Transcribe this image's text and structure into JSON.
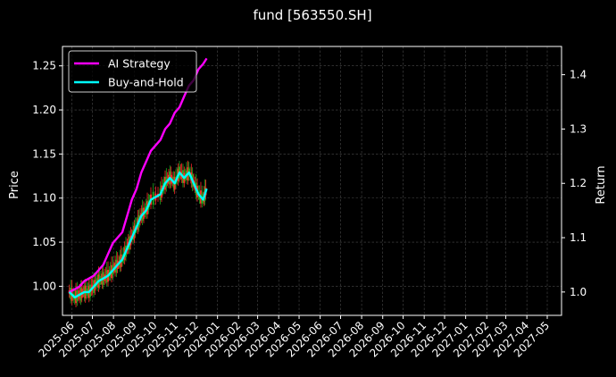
{
  "chart_data": {
    "type": "line",
    "title": "fund [563550.SH]",
    "xlabel": "",
    "ylabel_left": "Price",
    "ylabel_right": "Return",
    "x_ticks": [
      "2025-06",
      "2025-07",
      "2025-08",
      "2025-09",
      "2025-10",
      "2025-11",
      "2025-12",
      "2026-01",
      "2026-02",
      "2026-03",
      "2026-04",
      "2026-05",
      "2026-06",
      "2026-07",
      "2026-08",
      "2026-09",
      "2026-10",
      "2026-11",
      "2026-12",
      "2027-01",
      "2027-02",
      "2027-03",
      "2027-04",
      "2027-05"
    ],
    "y_left_ticks": [
      "1.00",
      "1.05",
      "1.10",
      "1.15",
      "1.20",
      "1.25"
    ],
    "y_right_ticks": [
      "1.0",
      "1.1",
      "1.2",
      "1.3",
      "1.4"
    ],
    "y_left_lim": [
      0.967,
      1.272
    ],
    "y_right_lim": [
      0.957,
      1.452
    ],
    "grid": true,
    "legend_position": "top-left",
    "legend": [
      {
        "name": "AI Strategy",
        "color": "#ff00ff"
      },
      {
        "name": "Buy-and-Hold",
        "color": "#00ffff"
      }
    ],
    "candle_colors": {
      "up": "#ff2a2a",
      "down": "#1faa1f"
    },
    "series": [
      {
        "name": "AI Strategy",
        "color": "#ff00ff",
        "axis": "right",
        "x": [
          "2025-05-28",
          "2025-06-05",
          "2025-06-12",
          "2025-06-19",
          "2025-06-26",
          "2025-07-03",
          "2025-07-10",
          "2025-07-17",
          "2025-07-24",
          "2025-07-31",
          "2025-08-07",
          "2025-08-14",
          "2025-08-21",
          "2025-08-28",
          "2025-09-04",
          "2025-09-11",
          "2025-09-18",
          "2025-09-25",
          "2025-10-09",
          "2025-10-16",
          "2025-10-23",
          "2025-10-30",
          "2025-11-06",
          "2025-11-13",
          "2025-11-20",
          "2025-11-27",
          "2025-12-04",
          "2025-12-11",
          "2025-12-16"
        ],
        "values": [
          1.0,
          1.005,
          1.01,
          1.02,
          1.025,
          1.03,
          1.04,
          1.05,
          1.07,
          1.09,
          1.1,
          1.11,
          1.14,
          1.17,
          1.19,
          1.22,
          1.24,
          1.26,
          1.28,
          1.3,
          1.31,
          1.33,
          1.34,
          1.36,
          1.38,
          1.39,
          1.41,
          1.42,
          1.43
        ]
      },
      {
        "name": "Buy-and-Hold",
        "color": "#00ffff",
        "axis": "right",
        "x": [
          "2025-05-28",
          "2025-06-05",
          "2025-06-12",
          "2025-06-19",
          "2025-06-26",
          "2025-07-03",
          "2025-07-10",
          "2025-07-17",
          "2025-07-24",
          "2025-07-31",
          "2025-08-07",
          "2025-08-14",
          "2025-08-21",
          "2025-08-28",
          "2025-09-04",
          "2025-09-11",
          "2025-09-18",
          "2025-09-25",
          "2025-10-09",
          "2025-10-16",
          "2025-10-23",
          "2025-10-30",
          "2025-11-06",
          "2025-11-13",
          "2025-11-20",
          "2025-11-27",
          "2025-12-04",
          "2025-12-11",
          "2025-12-16"
        ],
        "values": [
          1.0,
          0.99,
          0.995,
          1.0,
          1.0,
          1.01,
          1.02,
          1.025,
          1.03,
          1.04,
          1.05,
          1.06,
          1.08,
          1.1,
          1.12,
          1.14,
          1.15,
          1.17,
          1.18,
          1.2,
          1.21,
          1.2,
          1.22,
          1.21,
          1.22,
          1.2,
          1.18,
          1.17,
          1.19
        ]
      }
    ]
  }
}
